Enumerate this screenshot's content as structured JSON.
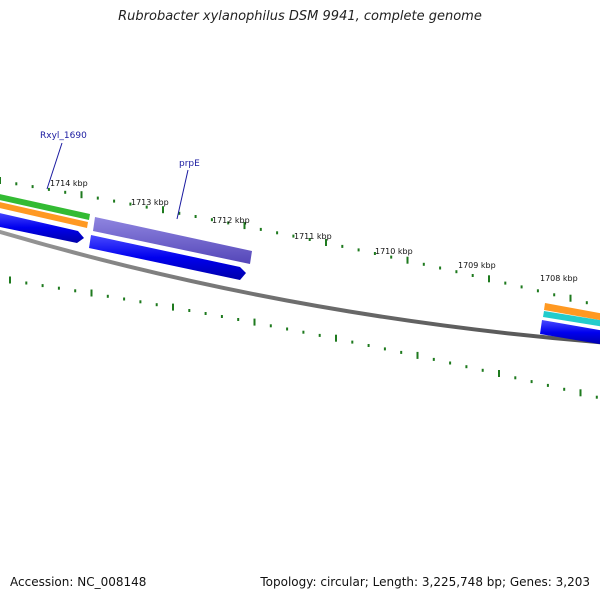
{
  "title": "Rubrobacter xylanophilus DSM 9941, complete genome",
  "footer": {
    "accession": "Accession: NC_008148",
    "stats": "Topology: circular; Length: 3,225,748 bp; Genes: 3,203"
  },
  "ruler": {
    "labels": [
      "1714 kbp",
      "1713 kbp",
      "1712 kbp",
      "1711 kbp",
      "1710 kbp",
      "1709 kbp",
      "1708 kbp"
    ]
  },
  "gene_labels": [
    {
      "name": "Rxyl_1690"
    },
    {
      "name": "prpE"
    }
  ],
  "colors": {
    "backbone": "#7a7a7a",
    "tick": "#1e7a1e",
    "cds": "#0000ee",
    "gene_purple": "#6a5acd",
    "green": "#33bb33",
    "orange": "#ff9922",
    "cyan": "#22cccc",
    "label": "#1a1aa0"
  }
}
